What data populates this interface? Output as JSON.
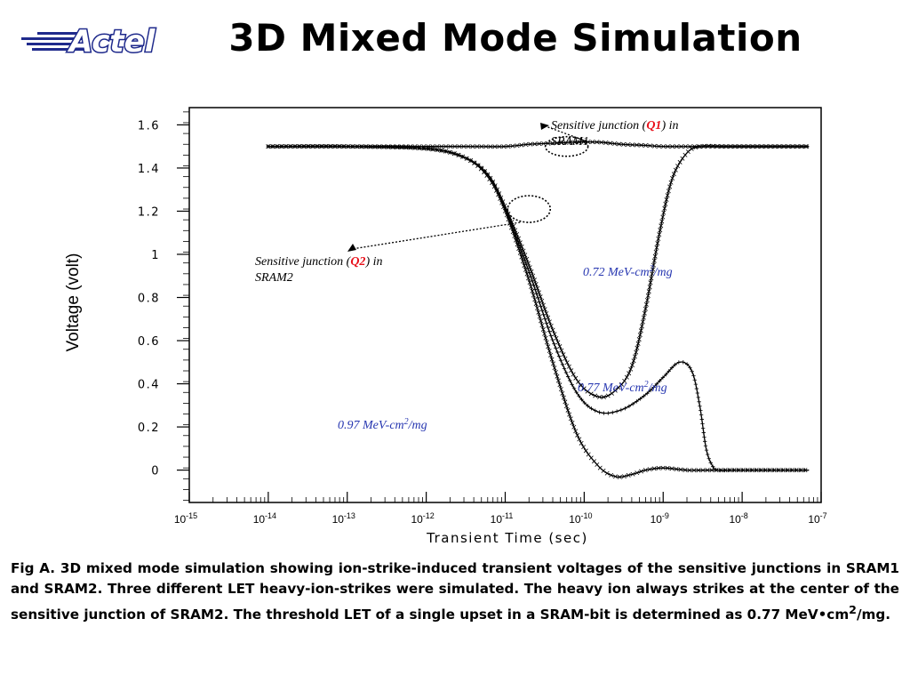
{
  "header": {
    "logo_text": "Actel",
    "title": "3D Mixed Mode Simulation"
  },
  "chart_data": {
    "type": "line",
    "title": "",
    "xlabel": "Transient Time (sec)",
    "ylabel": "Voltage (volt)",
    "x_scale": "log",
    "xlim": [
      1e-15,
      1e-07
    ],
    "ylim": [
      -0.15,
      1.68
    ],
    "x_ticks": [
      {
        "base": "10",
        "exp": "-15"
      },
      {
        "base": "10",
        "exp": "-14"
      },
      {
        "base": "10",
        "exp": "-13"
      },
      {
        "base": "10",
        "exp": "-12"
      },
      {
        "base": "10",
        "exp": "-11"
      },
      {
        "base": "10",
        "exp": "-10"
      },
      {
        "base": "10",
        "exp": "-9"
      },
      {
        "base": "10",
        "exp": "-8"
      },
      {
        "base": "10",
        "exp": "-7"
      }
    ],
    "y_ticks": [
      {
        "value": 0,
        "label": "0"
      },
      {
        "value": 0.2,
        "label": "0.2"
      },
      {
        "value": 0.4,
        "label": "0.4"
      },
      {
        "value": 0.6,
        "label": "0.6"
      },
      {
        "value": 0.8,
        "label": "0.8"
      },
      {
        "value": 1,
        "label": "1"
      },
      {
        "value": 1.2,
        "label": "1.2"
      },
      {
        "value": 1.4,
        "label": "1.4"
      },
      {
        "value": 1.6,
        "label": "1.6"
      }
    ],
    "series": [
      {
        "color": "#000000",
        "marker": "x",
        "x": [
          1e-14,
          1e-13,
          1e-12,
          3e-12,
          6e-12,
          1e-11,
          2e-11,
          4e-11,
          8e-11,
          1.5e-10,
          2.5e-10,
          4e-10,
          6e-10,
          9e-10,
          1.3e-09,
          2e-09,
          3e-09,
          6e-09,
          1e-08,
          3e-08,
          7e-08
        ],
        "y": [
          1.5,
          1.5,
          1.49,
          1.45,
          1.37,
          1.22,
          0.95,
          0.65,
          0.42,
          0.34,
          0.37,
          0.48,
          0.75,
          1.1,
          1.35,
          1.47,
          1.5,
          1.5,
          1.5,
          1.5,
          1.5
        ]
      },
      {
        "color": "#000000",
        "marker": "+",
        "x": [
          1e-14,
          1e-13,
          1e-12,
          3e-12,
          6e-12,
          1e-11,
          2e-11,
          4e-11,
          8e-11,
          1.5e-10,
          3e-10,
          6e-10,
          1e-09,
          1.6e-09,
          2.3e-09,
          2.9e-09,
          3.5e-09,
          4.2e-09,
          5e-09,
          8e-09,
          3e-08,
          7e-08
        ],
        "y": [
          1.5,
          1.5,
          1.49,
          1.45,
          1.37,
          1.21,
          0.92,
          0.6,
          0.36,
          0.27,
          0.28,
          0.35,
          0.43,
          0.5,
          0.46,
          0.3,
          0.1,
          0.02,
          0,
          0,
          0,
          0
        ]
      },
      {
        "color": "#000000",
        "marker": "x",
        "x": [
          1e-14,
          1e-13,
          1e-12,
          3e-12,
          6e-12,
          1e-11,
          2e-11,
          4e-11,
          8e-11,
          1.5e-10,
          2.5e-10,
          4e-10,
          6e-10,
          1e-09,
          2e-09,
          4e-09,
          1e-08,
          3e-08,
          7e-08
        ],
        "y": [
          1.5,
          1.5,
          1.49,
          1.45,
          1.36,
          1.2,
          0.88,
          0.5,
          0.17,
          0.02,
          -0.03,
          -0.02,
          0,
          0.01,
          0,
          0,
          0,
          0,
          0
        ]
      },
      {
        "color": "#000000",
        "marker": "x",
        "x": [
          1e-14,
          1e-13,
          1e-12,
          3e-12,
          1e-11,
          2e-11,
          4e-11,
          8e-11,
          1.5e-10,
          3e-10,
          6e-10,
          1e-09,
          3e-09,
          1e-08,
          7e-08
        ],
        "y": [
          1.5,
          1.5,
          1.5,
          1.5,
          1.5,
          1.51,
          1.515,
          1.52,
          1.52,
          1.51,
          1.505,
          1.5,
          1.5,
          1.5,
          1.5
        ]
      }
    ],
    "annotations": [
      {
        "id": "q1",
        "pre": "Sensitive junction (",
        "q": "Q1",
        "post": ") in",
        "line2": "SRAM1",
        "x": 6e-11,
        "y": 1.5
      },
      {
        "id": "q2",
        "pre": "Sensitive junction (",
        "q": "Q2",
        "post": ") in",
        "line2": "SRAM2",
        "x": 2e-11,
        "y": 1.21
      },
      {
        "id": "let072",
        "text": "0.72 MeV-cm",
        "sup": "2",
        "tail": "/mg",
        "x": 3e-09,
        "y": 0.92
      },
      {
        "id": "let077",
        "text": "0.77 MeV-cm",
        "sup": "2",
        "tail": "/mg",
        "x": 2.2e-09,
        "y": 0.36
      },
      {
        "id": "let097",
        "text": "0.97 MeV-cm",
        "sup": "2",
        "tail": "/mg",
        "x": 3e-10,
        "y": 0.18
      }
    ],
    "colors": {
      "axis": "#000000",
      "annotation_q": "#e8101a",
      "annotation_let": "#2535b0"
    }
  },
  "caption": {
    "lead": "Fig A.",
    "body": "  3D mixed mode simulation showing ion-strike-induced transient voltages of the sensitive junctions in SRAM1 and SRAM2.  Three different LET heavy-ion-strikes were simulated.  The heavy ion always strikes at the center of the sensitive junction of SRAM2.  The threshold LET of a single upset in a SRAM-bit is determined as 0.77 MeV•cm",
    "sup": "2",
    "tail": "/mg."
  }
}
